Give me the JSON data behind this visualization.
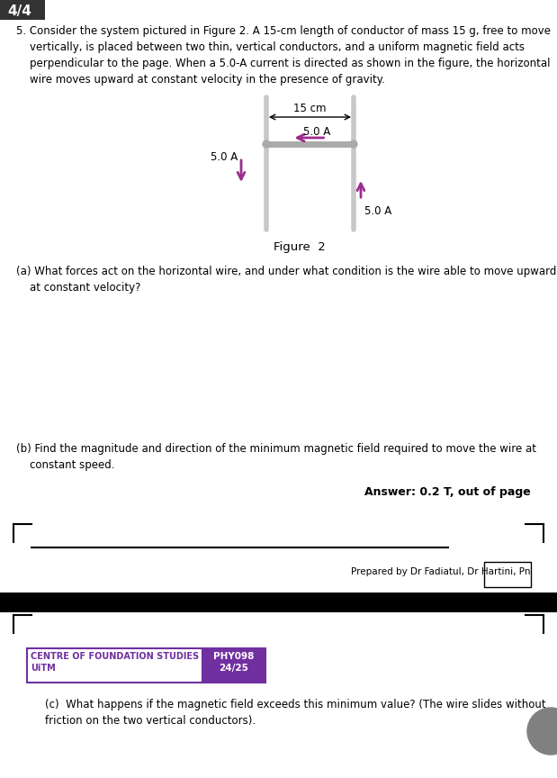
{
  "page_num": "4/4",
  "bg_color": "#ffffff",
  "part_a_text": "(a) What forces act on the horizontal wire, and under what condition is the wire able to move upward\n    at constant velocity?",
  "part_b_text": "(b) Find the magnitude and direction of the minimum magnetic field required to move the wire at\n    constant speed.",
  "answer_text": "Answer: 0.2 T, out of page",
  "prepared_text": "Prepared by Dr Fadiatul, Dr Hartini, Pn ",
  "footer_left": "CENTRE OF FOUNDATION STUDIES\nUiTM",
  "footer_right": "PHY098\n24/25",
  "part_c_text": "(c)  What happens if the magnetic field exceeds this minimum value? (The wire slides without\nfriction on the two vertical conductors).",
  "fig_label": "Figure  2",
  "footer_purple": "#7030A0",
  "arrow_color": "#9B2C8E",
  "dim_label": "15 cm",
  "current_label": "5.0 A",
  "left_current": "5.0 A",
  "right_current": "5.0 A"
}
